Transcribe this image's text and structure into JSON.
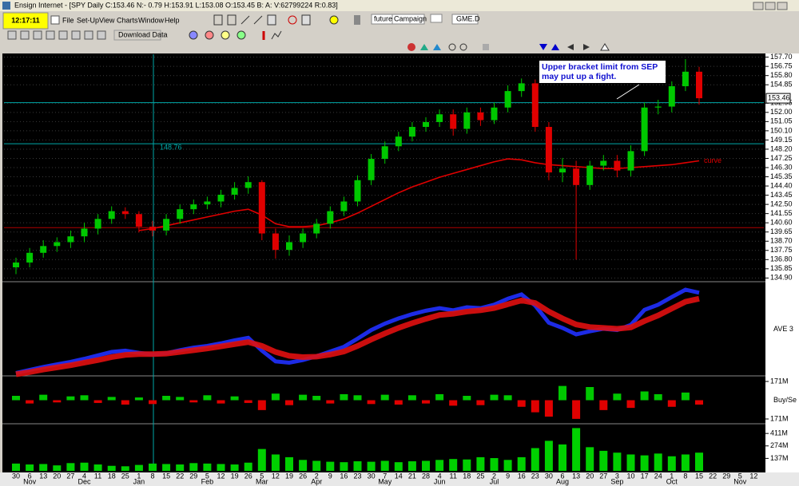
{
  "window": {
    "title": "Ensign Internet - [SPY Daily C:153.46 N:- 0.79 H:153.91 L:153.08 O:153.45 B: A: V:62799224 R:0.83]",
    "clock": "12:17:11",
    "menu": [
      "File",
      "Set-Up",
      "View",
      "Charts",
      "Window",
      "Help"
    ],
    "button": "Download Data",
    "tabs": [
      "futures",
      "Campaign",
      "GME.D"
    ]
  },
  "chart_data": [
    {
      "type": "candlestick",
      "annotation": "Upper bracket limit from SEP may put up a fight.",
      "categories": [
        "30",
        "6",
        "13",
        "20",
        "27",
        "4",
        "11",
        "18",
        "25",
        "1",
        "8",
        "15",
        "22",
        "29",
        "5",
        "12",
        "19",
        "26",
        "5",
        "12",
        "19",
        "26",
        "2",
        "9",
        "16",
        "23",
        "30",
        "7",
        "14",
        "21",
        "28",
        "4",
        "11",
        "18",
        "25",
        "2",
        "9",
        "16",
        "23",
        "30",
        "6",
        "13",
        "20",
        "27",
        "3",
        "10",
        "17",
        "24",
        "1",
        "8",
        "15",
        "22",
        "29",
        "5",
        "12"
      ],
      "months": [
        "Nov",
        "Dec",
        "Jan",
        "Feb",
        "Mar",
        "Apr",
        "May",
        "Jun",
        "Jul",
        "Aug",
        "Sep",
        "Oct",
        "Nov"
      ],
      "open": [
        136.0,
        136.5,
        137.5,
        138.2,
        138.6,
        139.2,
        140.0,
        141.0,
        141.8,
        141.5,
        140.2,
        139.8,
        141.0,
        142.0,
        142.5,
        142.8,
        143.5,
        144.2,
        144.8,
        139.5,
        137.8,
        138.6,
        139.5,
        140.5,
        141.8,
        142.8,
        145.0,
        147.2,
        148.5,
        149.5,
        150.5,
        151.0,
        151.8,
        150.3,
        152.0,
        151.2,
        152.5,
        154.2,
        155.0,
        150.5,
        145.8,
        146.2,
        144.5,
        146.5,
        147.0,
        146.0,
        148.0,
        152.5,
        152.6,
        154.7,
        156.2,
        null,
        null,
        null,
        null
      ],
      "high": [
        137.0,
        138.0,
        138.8,
        139.1,
        139.8,
        140.6,
        141.5,
        142.3,
        142.2,
        141.8,
        140.8,
        141.5,
        142.5,
        143.0,
        143.3,
        144.0,
        144.8,
        145.4,
        145.0,
        140.0,
        139.3,
        140.0,
        141.0,
        142.3,
        143.3,
        145.5,
        147.7,
        149.0,
        150.0,
        151.0,
        151.5,
        152.3,
        152.3,
        152.5,
        152.5,
        153.0,
        154.8,
        155.5,
        155.4,
        151.0,
        147.3,
        147.0,
        147.0,
        147.6,
        147.6,
        148.6,
        153.0,
        153.3,
        155.2,
        157.5,
        156.7,
        null,
        null,
        null,
        null
      ],
      "low": [
        135.3,
        136.0,
        137.0,
        137.6,
        138.0,
        138.6,
        139.4,
        140.5,
        141.0,
        139.6,
        139.2,
        139.3,
        140.5,
        141.5,
        142.0,
        142.2,
        143.0,
        143.6,
        138.8,
        136.9,
        137.2,
        138.0,
        139.0,
        140.0,
        141.3,
        142.3,
        144.5,
        146.7,
        148.0,
        149.0,
        150.0,
        150.5,
        149.6,
        149.8,
        150.6,
        150.8,
        152.0,
        153.6,
        150.0,
        145.0,
        144.8,
        136.8,
        144.0,
        146.0,
        145.3,
        145.4,
        147.5,
        151.8,
        152.0,
        154.2,
        152.8,
        null,
        null,
        null,
        null
      ],
      "close": [
        136.5,
        137.5,
        138.2,
        138.6,
        139.2,
        140.0,
        141.0,
        141.8,
        141.5,
        140.2,
        139.8,
        141.0,
        142.0,
        142.5,
        142.8,
        143.5,
        144.2,
        144.8,
        139.5,
        137.8,
        138.6,
        139.5,
        140.5,
        141.8,
        142.8,
        145.0,
        147.2,
        148.5,
        149.5,
        150.5,
        151.0,
        151.8,
        150.3,
        152.0,
        151.2,
        152.5,
        154.2,
        155.0,
        150.5,
        145.8,
        146.2,
        144.5,
        146.5,
        147.0,
        146.0,
        148.0,
        152.5,
        152.6,
        154.7,
        156.2,
        153.46,
        null,
        null,
        null,
        null
      ],
      "colors": {
        "up": "#00c800",
        "down": "#e00000"
      },
      "series": [
        {
          "name": "curve",
          "color": "#e00000",
          "values": [
            null,
            null,
            null,
            null,
            null,
            null,
            null,
            null,
            null,
            139.8,
            140.0,
            140.3,
            140.6,
            140.9,
            141.2,
            141.5,
            141.8,
            142.0,
            141.4,
            140.5,
            140.2,
            140.2,
            140.3,
            140.6,
            141.0,
            141.6,
            142.3,
            143.0,
            143.7,
            144.3,
            144.8,
            145.3,
            145.7,
            146.1,
            146.5,
            146.9,
            147.2,
            147.1,
            146.8,
            146.6,
            146.5,
            146.4,
            146.3,
            146.2,
            146.2,
            146.3,
            146.4,
            146.5,
            146.6,
            146.8,
            147.0,
            null,
            null,
            null,
            null
          ]
        }
      ],
      "levels": [
        {
          "value": 148.76,
          "label": "148.76",
          "color": "#00a8a8"
        },
        {
          "value": 153.0,
          "color": "#00a8a8"
        },
        {
          "value": 140.1,
          "color": "#b00000"
        }
      ],
      "last_price": {
        "value": 153.46,
        "label": "153.46"
      },
      "ylim": [
        134.6,
        158.0
      ],
      "yticks": [
        {
          "value": 157.7,
          "label": "157.70"
        },
        {
          "value": 156.75,
          "label": "156.75"
        },
        {
          "value": 155.8,
          "label": "155.80"
        },
        {
          "value": 154.85,
          "label": "154.85"
        },
        {
          "value": 152.95,
          "label": "152.95"
        },
        {
          "value": 152.0,
          "label": "152.00"
        },
        {
          "value": 151.05,
          "label": "151.05"
        },
        {
          "value": 150.1,
          "label": "150.10"
        },
        {
          "value": 149.15,
          "label": "149.15"
        },
        {
          "value": 148.2,
          "label": "148.20"
        },
        {
          "value": 147.25,
          "label": "147.25"
        },
        {
          "value": 146.3,
          "label": "146.30"
        },
        {
          "value": 145.35,
          "label": "145.35"
        },
        {
          "value": 144.4,
          "label": "144.40"
        },
        {
          "value": 143.45,
          "label": "143.45"
        },
        {
          "value": 142.5,
          "label": "142.50"
        },
        {
          "value": 141.55,
          "label": "141.55"
        },
        {
          "value": 140.6,
          "label": "140.60"
        },
        {
          "value": 139.65,
          "label": "139.65"
        },
        {
          "value": 138.7,
          "label": "138.70"
        },
        {
          "value": 137.75,
          "label": "137.75"
        },
        {
          "value": 136.8,
          "label": "136.80"
        },
        {
          "value": 135.85,
          "label": "135.85"
        },
        {
          "value": 134.9,
          "label": "134.90"
        }
      ],
      "grid": true
    },
    {
      "type": "ribbon",
      "label": "AVE 3",
      "ylim": [
        136,
        157
      ],
      "series": [
        {
          "color": "#2030ff",
          "values": [
            136.3,
            137.0,
            137.7,
            138.3,
            138.9,
            139.6,
            140.4,
            141.2,
            141.5,
            141.0,
            140.6,
            140.9,
            141.6,
            142.2,
            142.6,
            143.2,
            143.9,
            144.5,
            141.5,
            139.0,
            138.7,
            139.3,
            140.2,
            141.3,
            142.4,
            144.3,
            146.3,
            147.8,
            149.0,
            150.0,
            150.8,
            151.4,
            150.9,
            151.6,
            151.4,
            152.2,
            153.6,
            154.6,
            152.0,
            148.0,
            146.8,
            145.3,
            146.0,
            146.6,
            146.3,
            147.5,
            151.0,
            152.2,
            154.0,
            155.7,
            155.0
          ]
        },
        {
          "color": "#e01010",
          "values": [
            136.0,
            136.5,
            137.1,
            137.6,
            138.1,
            138.7,
            139.3,
            140.0,
            140.5,
            140.7,
            140.7,
            140.8,
            141.2,
            141.6,
            142.0,
            142.5,
            143.0,
            143.5,
            142.6,
            141.2,
            140.3,
            140.0,
            140.1,
            140.6,
            141.3,
            142.6,
            144.1,
            145.5,
            146.8,
            147.9,
            148.9,
            149.8,
            150.1,
            150.6,
            150.9,
            151.4,
            152.3,
            153.2,
            152.6,
            150.6,
            149.0,
            147.6,
            147.0,
            146.8,
            146.6,
            146.9,
            148.4,
            149.7,
            151.3,
            152.9,
            153.6
          ]
        }
      ]
    },
    {
      "type": "bar",
      "label": "Buy/Se",
      "colors": {
        "up": "#00c800",
        "down": "#e00000"
      },
      "values": [
        40000000,
        -30000000,
        50000000,
        -20000000,
        35000000,
        45000000,
        -25000000,
        30000000,
        -40000000,
        25000000,
        -35000000,
        40000000,
        30000000,
        -20000000,
        45000000,
        -30000000,
        35000000,
        -25000000,
        -90000000,
        60000000,
        -45000000,
        50000000,
        40000000,
        -30000000,
        55000000,
        45000000,
        -35000000,
        50000000,
        -40000000,
        45000000,
        -30000000,
        55000000,
        -50000000,
        40000000,
        -45000000,
        50000000,
        45000000,
        -60000000,
        -110000000,
        -150000000,
        130000000,
        -170000000,
        120000000,
        -90000000,
        60000000,
        -70000000,
        80000000,
        55000000,
        -60000000,
        70000000,
        -40000000
      ],
      "ylim": [
        -200000000,
        200000000
      ],
      "yticks": [
        {
          "value": 171000000,
          "label": "171M"
        },
        {
          "value": -171000000,
          "label": "171M"
        }
      ]
    },
    {
      "type": "bar",
      "color": "#00d000",
      "values": [
        80000000,
        70000000,
        75000000,
        60000000,
        85000000,
        90000000,
        70000000,
        55000000,
        50000000,
        65000000,
        80000000,
        75000000,
        70000000,
        85000000,
        80000000,
        75000000,
        70000000,
        90000000,
        240000000,
        180000000,
        150000000,
        120000000,
        110000000,
        100000000,
        95000000,
        105000000,
        100000000,
        110000000,
        95000000,
        105000000,
        110000000,
        120000000,
        130000000,
        125000000,
        150000000,
        140000000,
        120000000,
        150000000,
        250000000,
        330000000,
        290000000,
        470000000,
        260000000,
        220000000,
        200000000,
        180000000,
        170000000,
        190000000,
        160000000,
        180000000,
        200000000
      ],
      "ylim": [
        0,
        500000000
      ],
      "yticks": [
        {
          "value": 411000000,
          "label": "411M"
        },
        {
          "value": 274000000,
          "label": "274M"
        },
        {
          "value": 137000000,
          "label": "137M"
        }
      ]
    }
  ]
}
